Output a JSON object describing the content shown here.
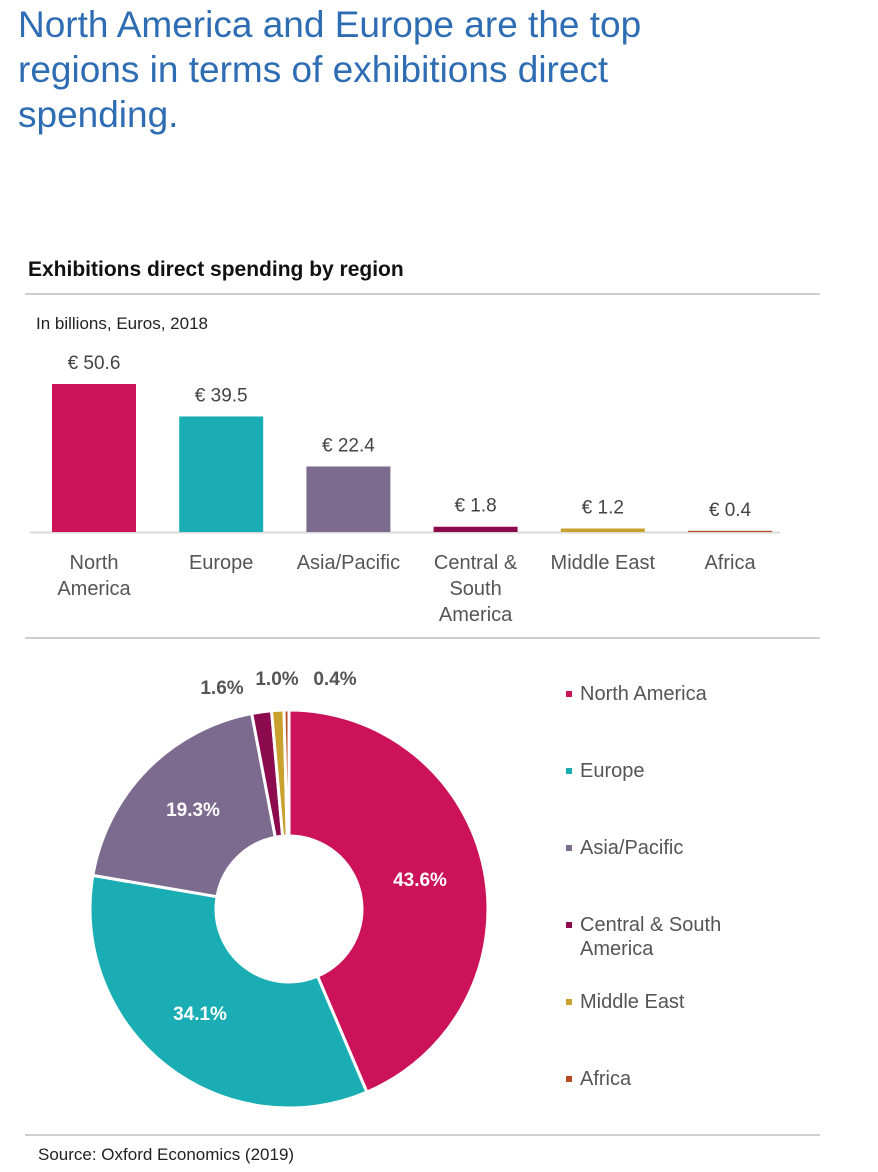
{
  "headline": "North America and Europe are the top regions in terms of exhibitions direct spending.",
  "source": "Source: Oxford Economics (2019)",
  "chart_data": [
    {
      "type": "bar",
      "title": "Exhibitions direct spending by region",
      "subtitle": "In billions, Euros, 2018",
      "categories": [
        "North America",
        "Europe",
        "Asia/Pacific",
        "Central & South America",
        "Middle East",
        "Africa"
      ],
      "category_lines": [
        [
          "North",
          "America"
        ],
        [
          "Europe"
        ],
        [
          "Asia/Pacific"
        ],
        [
          "Central &",
          "South",
          "America"
        ],
        [
          "Middle East"
        ],
        [
          "Africa"
        ]
      ],
      "values": [
        50.6,
        39.5,
        22.4,
        1.8,
        1.2,
        0.4
      ],
      "data_labels": [
        "€ 50.6",
        "€ 39.5",
        "€ 22.4",
        "€ 1.8",
        "€ 1.2",
        "€ 0.4"
      ],
      "colors": [
        "#cc1259",
        "#1aaeb4",
        "#7d6a8f",
        "#8c0b4f",
        "#c9a12e",
        "#b84a1f"
      ],
      "ylim": [
        0,
        50.6
      ],
      "grid": false
    },
    {
      "type": "pie",
      "donut": true,
      "labels": [
        "North America",
        "Europe",
        "Asia/Pacific",
        "Central & South America",
        "Middle East",
        "Africa"
      ],
      "values": [
        43.6,
        34.1,
        19.3,
        1.6,
        1.0,
        0.4
      ],
      "data_labels": [
        "43.6%",
        "34.1%",
        "19.3%",
        "1.6%",
        "1.0%",
        "0.4%"
      ],
      "colors": [
        "#cc1259",
        "#1aaeb4",
        "#7d6a8f",
        "#8c0b4f",
        "#c9a12e",
        "#b84a1f"
      ],
      "legend_position": "right",
      "legend": [
        {
          "lines": [
            "North America"
          ]
        },
        {
          "lines": [
            "Europe"
          ]
        },
        {
          "lines": [
            "Asia/Pacific"
          ]
        },
        {
          "lines": [
            "Central & South",
            "America"
          ]
        },
        {
          "lines": [
            "Middle East"
          ]
        },
        {
          "lines": [
            "Africa"
          ]
        }
      ]
    }
  ]
}
